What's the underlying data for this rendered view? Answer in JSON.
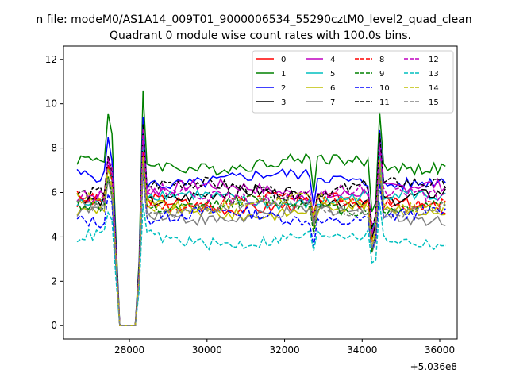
{
  "chart_data": {
    "type": "line",
    "suptitle": "n file: modeM0/AS1A14_009T01_9000006534_55290cztM0_level2_quad_clean",
    "title": "Quadrant 0 module wise count rates with 100.0s bins.",
    "xlabel": "",
    "ylabel": "",
    "offset_text": "+5.036e8",
    "xlim": [
      26300,
      36450
    ],
    "ylim": [
      -0.6,
      12.6
    ],
    "x_ticks": [
      28000,
      30000,
      32000,
      34000,
      36000
    ],
    "x_tick_labels": [
      "28000",
      "30000",
      "32000",
      "34000",
      "36000"
    ],
    "y_ticks": [
      0,
      2,
      4,
      6,
      8,
      10,
      12
    ],
    "y_tick_labels": [
      "0",
      "2",
      "4",
      "6",
      "8",
      "10",
      "12"
    ],
    "grid": false,
    "legend_position": "top-right",
    "bin_seconds": 100,
    "x_start": 26650,
    "x_end": 36150,
    "gaps": [
      [
        27750,
        28150
      ]
    ],
    "dips": [
      [
        32750,
        0.82
      ],
      [
        34250,
        0.7
      ],
      [
        34350,
        0.78
      ]
    ],
    "peaks": [
      [
        27450,
        1.28
      ],
      [
        27550,
        1.15
      ],
      [
        28350,
        1.42
      ],
      [
        34450,
        1.35
      ]
    ],
    "series": [
      {
        "name": "0",
        "color": "#ff0000",
        "dash": "solid",
        "level": 5.5
      },
      {
        "name": "1",
        "color": "#008000",
        "dash": "solid",
        "level": 7.3
      },
      {
        "name": "2",
        "color": "#0000ff",
        "dash": "solid",
        "level": 6.6
      },
      {
        "name": "3",
        "color": "#000000",
        "dash": "solid",
        "level": 5.8
      },
      {
        "name": "4",
        "color": "#bf00bf",
        "dash": "solid",
        "level": 6.1
      },
      {
        "name": "5",
        "color": "#00bfbf",
        "dash": "solid",
        "level": 5.7
      },
      {
        "name": "6",
        "color": "#bfbf00",
        "dash": "solid",
        "level": 5.2
      },
      {
        "name": "7",
        "color": "#808080",
        "dash": "solid",
        "level": 5.0
      },
      {
        "name": "8",
        "color": "#ff0000",
        "dash": "dashed",
        "level": 5.6
      },
      {
        "name": "9",
        "color": "#008000",
        "dash": "dashed",
        "level": 5.4
      },
      {
        "name": "10",
        "color": "#0000ff",
        "dash": "dashed",
        "level": 4.9
      },
      {
        "name": "11",
        "color": "#000000",
        "dash": "dashed",
        "level": 6.2
      },
      {
        "name": "12",
        "color": "#bf00bf",
        "dash": "dashed",
        "level": 5.9
      },
      {
        "name": "13",
        "color": "#00bfbf",
        "dash": "dashed",
        "level": 3.9
      },
      {
        "name": "14",
        "color": "#bfbf00",
        "dash": "dashed",
        "level": 5.5
      },
      {
        "name": "15",
        "color": "#808080",
        "dash": "dashed",
        "level": 5.3
      }
    ]
  }
}
